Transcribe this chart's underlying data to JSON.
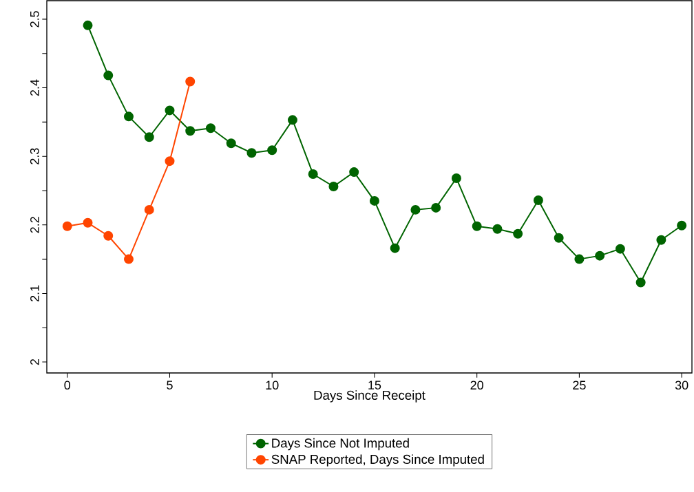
{
  "chart_data": {
    "type": "line",
    "xlabel": "Days Since Receipt",
    "xlim": [
      -1,
      30.5
    ],
    "xticks": [
      0,
      5,
      10,
      15,
      20,
      25,
      30
    ],
    "ylim": [
      1.984,
      2.527
    ],
    "yticks": [
      2,
      {
        "value": 2.05,
        "label": null
      },
      2.1,
      {
        "value": 2.15,
        "label": null
      },
      2.2,
      {
        "value": 2.25,
        "label": null
      },
      2.3,
      {
        "value": 2.35,
        "label": null
      },
      2.4,
      {
        "value": 2.45,
        "label": null
      },
      2.5
    ],
    "grid": false,
    "legend": "bottom",
    "marker": "circle",
    "line_style": "solid",
    "series": [
      {
        "name": "Days Since Not Imputed",
        "color": "#006400",
        "x": [
          1,
          2,
          3,
          4,
          5,
          6,
          7,
          8,
          9,
          10,
          11,
          12,
          13,
          14,
          15,
          16,
          17,
          18,
          19,
          20,
          21,
          22,
          23,
          24,
          25,
          26,
          27,
          28,
          29,
          30
        ],
        "values": [
          2.491,
          2.418,
          2.358,
          2.328,
          2.367,
          2.337,
          2.341,
          2.319,
          2.305,
          2.309,
          2.353,
          2.274,
          2.256,
          2.277,
          2.235,
          2.166,
          2.222,
          2.225,
          2.268,
          2.198,
          2.194,
          2.187,
          2.236,
          2.181,
          2.15,
          2.155,
          2.165,
          2.116,
          2.178,
          2.199
        ]
      },
      {
        "name": "SNAP Reported, Days Since Imputed",
        "color": "#ff4500",
        "x": [
          0,
          1,
          2,
          3,
          4,
          5,
          6
        ],
        "values": [
          2.198,
          2.203,
          2.184,
          2.15,
          2.222,
          2.293,
          2.409
        ]
      }
    ]
  }
}
